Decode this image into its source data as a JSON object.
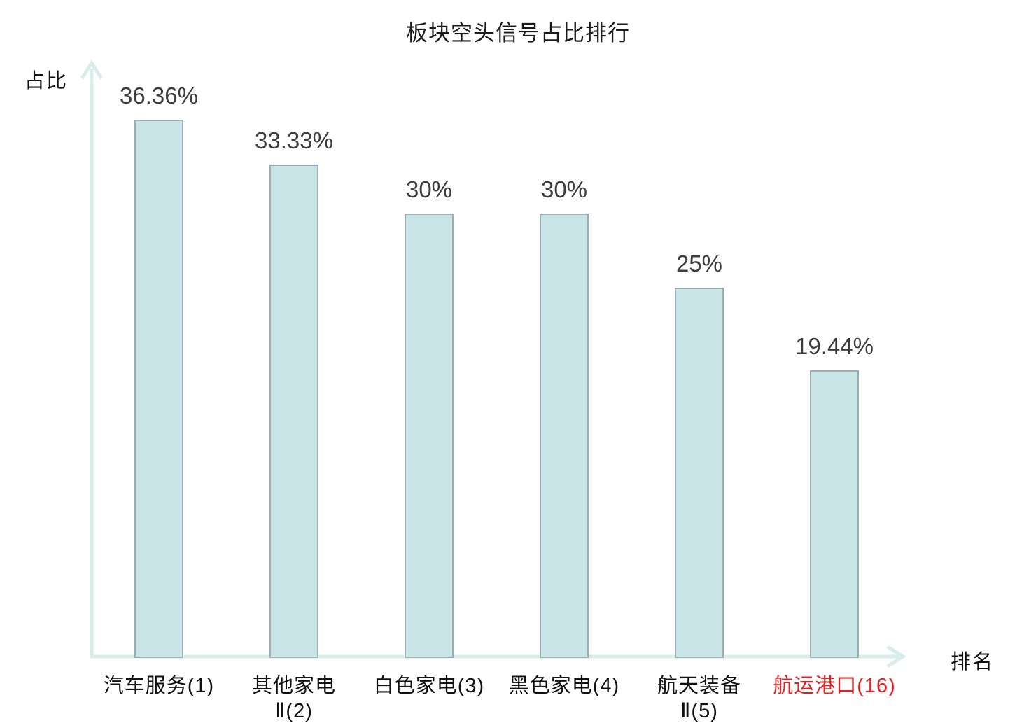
{
  "chart_data": {
    "type": "bar",
    "title": "板块空头信号占比排行",
    "xlabel": "排名",
    "ylabel": "占比",
    "categories": [
      "汽车服务(1)",
      "其他家电Ⅱ(2)",
      "白色家电(3)",
      "黑色家电(4)",
      "航天装备Ⅱ(5)",
      "航运港口(16)"
    ],
    "category_lines": [
      [
        "汽车服务(1)"
      ],
      [
        "其他家电",
        "Ⅱ(2)"
      ],
      [
        "白色家电(3)"
      ],
      [
        "黑色家电(4)"
      ],
      [
        "航天装备",
        "Ⅱ(5)"
      ],
      [
        "航运港口(16)"
      ]
    ],
    "values": [
      36.36,
      33.33,
      30,
      30,
      25,
      19.44
    ],
    "value_labels": [
      "36.36%",
      "33.33%",
      "30%",
      "30%",
      "25%",
      "19.44%"
    ],
    "highlighted_index": 5,
    "ylim": [
      0,
      40
    ],
    "grid": false,
    "legend": "none",
    "colors": {
      "bar_fill": "#c8e4e6",
      "bar_border": "#9aaeb3",
      "axis": "#d9ece9",
      "value_text": "#3d3d3d",
      "label_text": "#111111",
      "highlight_text": "#e02222",
      "background": "#ffffff"
    }
  }
}
